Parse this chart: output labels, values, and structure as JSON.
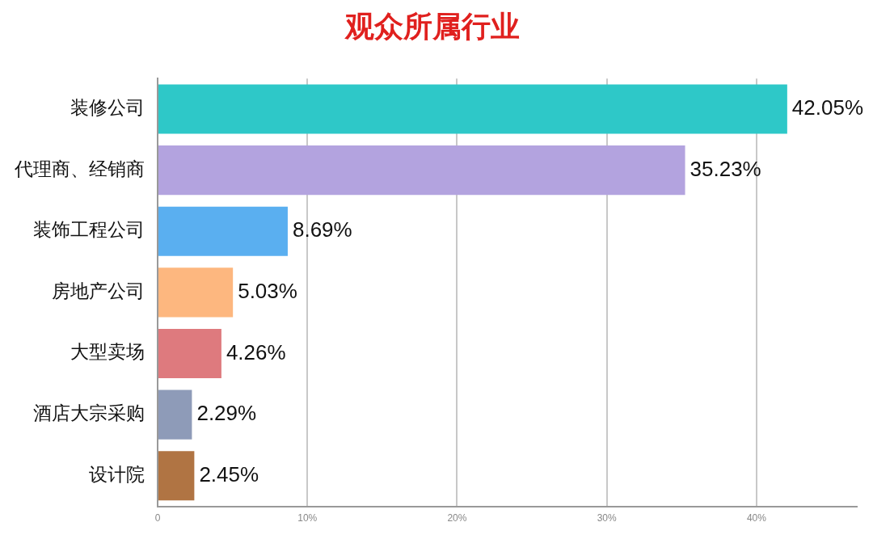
{
  "chart_data": {
    "type": "bar",
    "orientation": "horizontal",
    "title": "观众所属行业",
    "categories": [
      "装修公司",
      "代理商、经销商",
      "装饰工程公司",
      "房地产公司",
      "大型卖场",
      "酒店大宗采购",
      "设计院"
    ],
    "values": [
      42.05,
      35.23,
      8.69,
      5.03,
      4.26,
      2.29,
      2.45
    ],
    "value_labels": [
      "42.05%",
      "35.23%",
      "8.69%",
      "5.03%",
      "4.26%",
      "2.29%",
      "2.45%"
    ],
    "colors": [
      "#2ec8c8",
      "#b3a3df",
      "#5aaff0",
      "#fdb77f",
      "#de7a7e",
      "#8e9bb8",
      "#b07443"
    ],
    "xlim": [
      0,
      46.7
    ],
    "xticks": [
      0,
      {
        "value": 10,
        "label": "10%"
      },
      {
        "value": 20,
        "label": "20%"
      },
      {
        "value": 30,
        "label": "30%"
      },
      {
        "value": 40,
        "label": "40%"
      }
    ],
    "grid": "x"
  }
}
